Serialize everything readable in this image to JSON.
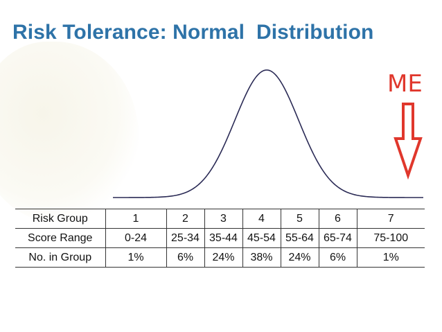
{
  "title": "Risk Tolerance: Normal  Distribution",
  "marker": {
    "label": "ME",
    "color": "#e0372c",
    "x_value": 7
  },
  "chart_data": {
    "type": "area",
    "title": "Risk Tolerance: Normal  Distribution",
    "x": [
      1,
      2,
      3,
      4,
      5,
      6,
      7
    ],
    "series": [
      {
        "values": [
          1,
          6,
          24,
          38,
          24,
          6,
          1
        ]
      }
    ]
  },
  "table": {
    "rows": [
      {
        "label": "Risk Group",
        "cells": [
          "1",
          "2",
          "3",
          "4",
          "5",
          "6",
          "7"
        ]
      },
      {
        "label": "Score Range",
        "cells": [
          "0-24",
          "25-34",
          "35-44",
          "45-54",
          "55-64",
          "65-74",
          "75-100"
        ]
      },
      {
        "label": "No. in Group",
        "cells": [
          "1%",
          "6%",
          "24%",
          "38%",
          "24%",
          "6%",
          "1%"
        ]
      }
    ]
  },
  "colors": {
    "title": "#2e73a8",
    "curve": "#2a2a55",
    "arrow": "#e0372c"
  }
}
